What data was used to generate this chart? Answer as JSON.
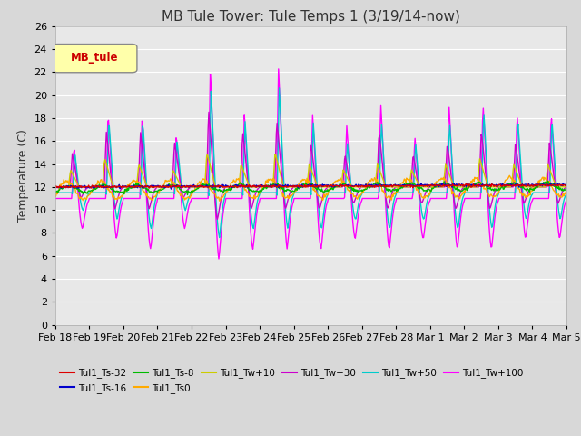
{
  "title": "MB Tule Tower: Tule Temps 1 (3/19/14-now)",
  "ylabel": "Temperature (C)",
  "ylim": [
    0,
    26
  ],
  "yticks": [
    0,
    2,
    4,
    6,
    8,
    10,
    12,
    14,
    16,
    18,
    20,
    22,
    24,
    26
  ],
  "xlabel_dates": [
    "Feb 18",
    "Feb 19",
    "Feb 20",
    "Feb 21",
    "Feb 22",
    "Feb 23",
    "Feb 24",
    "Feb 25",
    "Feb 26",
    "Feb 27",
    "Feb 28",
    "Mar 1",
    "Mar 2",
    "Mar 3",
    "Mar 4",
    "Mar 5"
  ],
  "legend_label": "MB_tule",
  "series_labels": [
    "Tul1_Ts-32",
    "Tul1_Ts-16",
    "Tul1_Ts-8",
    "Tul1_Ts0",
    "Tul1_Tw+10",
    "Tul1_Tw+30",
    "Tul1_Tw+50",
    "Tul1_Tw+100"
  ],
  "series_colors": [
    "#dd0000",
    "#0000cc",
    "#00bb00",
    "#ffaa00",
    "#cccc00",
    "#cc00cc",
    "#00cccc",
    "#ff00ff"
  ],
  "background_color": "#d8d8d8",
  "plot_bg_color": "#e8e8e8",
  "grid_color": "#ffffff",
  "title_fontsize": 11,
  "axis_fontsize": 9,
  "tick_fontsize": 8,
  "linewidth": 1.0
}
